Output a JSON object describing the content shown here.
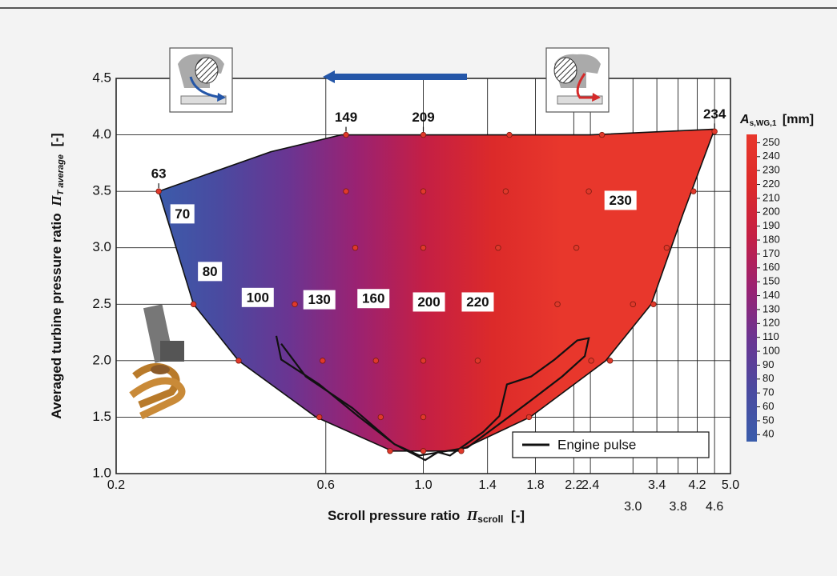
{
  "chart_data": {
    "type": "contour",
    "x_label": "Scroll pressure ratio",
    "x_label_symbol": "Π",
    "x_label_sub": "scroll",
    "x_label_unit": "[-]",
    "y_label": "Averaged turbine pressure ratio",
    "y_label_symbol": "Π",
    "y_label_sub": "T average",
    "y_label_unit": "[-]",
    "x_scale": "log",
    "xlim": [
      0.2,
      5.0
    ],
    "xticks": [
      0.2,
      0.6,
      {
        "value": 1,
        "label": "1.0"
      },
      1.4,
      1.8,
      2.2,
      2.4,
      {
        "value": 3,
        "label": "3.0"
      },
      3.4,
      3.8,
      4.2,
      4.6,
      {
        "value": 5,
        "label": "5.0"
      }
    ],
    "ylim": [
      1.0,
      4.5
    ],
    "yticks": [
      {
        "value": 1,
        "label": "1.0"
      },
      1.5,
      {
        "value": 2,
        "label": "2.0"
      },
      2.5,
      {
        "value": 3,
        "label": "3.0"
      },
      3.5,
      {
        "value": 4,
        "label": "4.0"
      },
      4.5
    ],
    "grid": true,
    "boundary": {
      "x": [
        0.25,
        0.45,
        0.65,
        1.0,
        1.55,
        2.4,
        4.6,
        3.9,
        3.3,
        2.6,
        1.75,
        1.2,
        0.85,
        0.57,
        0.38,
        0.3,
        0.25
      ],
      "y": [
        3.5,
        3.85,
        4.0,
        4.0,
        4.0,
        4.0,
        4.05,
        3.3,
        2.5,
        2.0,
        1.5,
        1.2,
        1.2,
        1.5,
        2.0,
        2.5,
        3.5
      ]
    },
    "colormap": [
      "#3a5dab",
      "#4a4aa0",
      "#6a3592",
      "#9a2272",
      "#c41f45",
      "#dc2a2a",
      "#e8372c"
    ],
    "scatter_points": {
      "color": "#e0392b",
      "x": [
        0.25,
        0.667,
        1.0,
        1.57,
        2.55,
        4.6,
        0.667,
        1.0,
        1.54,
        2.38,
        4.12,
        0.7,
        1.0,
        1.48,
        2.23,
        3.58,
        0.3,
        0.51,
        2.02,
        3.0,
        3.34,
        0.38,
        0.59,
        0.78,
        1.0,
        1.33,
        2.41,
        2.66,
        0.58,
        0.8,
        1.0,
        1.74,
        0.84,
        1.0,
        1.22
      ],
      "y": [
        3.5,
        4.0,
        4.0,
        4.0,
        4.0,
        4.03,
        3.5,
        3.5,
        3.5,
        3.5,
        3.5,
        3.0,
        3.0,
        3.0,
        3.0,
        3.0,
        2.5,
        2.5,
        2.5,
        2.5,
        2.5,
        2.0,
        2.0,
        2.0,
        2.0,
        2.0,
        2.0,
        2.0,
        1.5,
        1.5,
        1.5,
        1.5,
        1.2,
        1.2,
        1.2
      ]
    },
    "point_labels": [
      {
        "value": 63,
        "x": 0.25,
        "y": 3.5
      },
      {
        "value": 149,
        "x": 0.667,
        "y": 4.0
      },
      {
        "value": 209,
        "x": 1.0,
        "y": 4.0
      },
      {
        "value": 234,
        "x": 4.6,
        "y": 4.03
      }
    ],
    "contour_labels": [
      {
        "value": 70,
        "x": 0.283,
        "y": 3.3
      },
      {
        "value": 80,
        "x": 0.327,
        "y": 2.79
      },
      {
        "value": 100,
        "x": 0.42,
        "y": 2.56
      },
      {
        "value": 130,
        "x": 0.58,
        "y": 2.54
      },
      {
        "value": 160,
        "x": 0.77,
        "y": 2.55
      },
      {
        "value": 200,
        "x": 1.03,
        "y": 2.52
      },
      {
        "value": 220,
        "x": 1.33,
        "y": 2.52
      },
      {
        "value": 230,
        "x": 2.81,
        "y": 3.42
      }
    ],
    "series": [
      {
        "name": "Engine pulse",
        "color": "#111111",
        "x": [
          0.463,
          0.475,
          0.58,
          0.71,
          0.86,
          1.01,
          1.08,
          1.15,
          1.37,
          1.49,
          1.55,
          1.76,
          1.99,
          2.24,
          2.38,
          2.33,
          2.07,
          1.76,
          1.49,
          1.26,
          0.98,
          0.86,
          0.69,
          0.54,
          0.475
        ],
        "values": [
          2.22,
          2.01,
          1.79,
          1.51,
          1.26,
          1.12,
          1.19,
          1.16,
          1.37,
          1.51,
          1.79,
          1.86,
          2.01,
          2.18,
          2.2,
          2.04,
          1.86,
          1.65,
          1.44,
          1.23,
          1.16,
          1.26,
          1.58,
          1.86,
          2.15
        ]
      }
    ],
    "legend_position": "lower right",
    "colorbar": {
      "label": "A",
      "label_sub": "s,WG,1",
      "unit": "[mm]",
      "lim": [
        35,
        256
      ],
      "ticks": [
        40,
        50,
        60,
        70,
        80,
        90,
        100,
        110,
        120,
        130,
        140,
        150,
        160,
        170,
        180,
        190,
        200,
        210,
        220,
        230,
        240,
        250
      ]
    }
  }
}
